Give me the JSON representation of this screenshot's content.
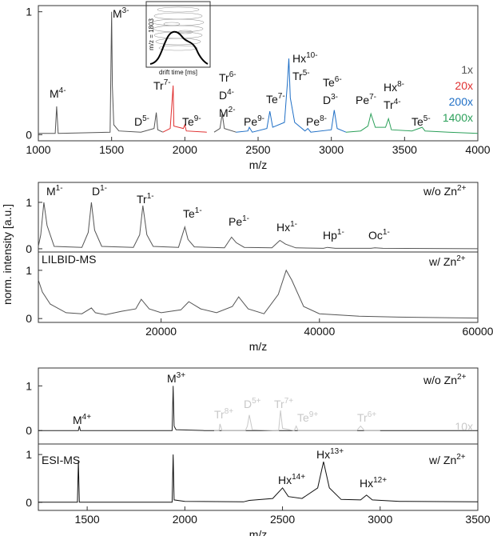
{
  "chart_data": [
    {
      "type": "line",
      "xlim": [
        1000,
        4000
      ],
      "xticks": [
        1000,
        1500,
        2000,
        2500,
        3000,
        3500,
        4000
      ],
      "ylim": [
        -0.05,
        1.05
      ],
      "yticks": [
        0,
        1
      ],
      "xlabel": "m/z",
      "legend": "right",
      "inset": {
        "ylabel": "m/z = 1803",
        "xlabel": "drift time [ms]"
      },
      "series": [
        {
          "name": "1x",
          "color": "#555555",
          "x": [
            1000,
            1115,
            1125,
            1135,
            1490,
            1500,
            1505,
            1515,
            1550,
            1700,
            1790,
            1805,
            1815,
            1850,
            null,
            2200,
            2240,
            2255,
            2270,
            2350
          ],
          "values": [
            0.01,
            0.01,
            0.23,
            0.01,
            0.02,
            1.0,
            0.4,
            0.08,
            0.03,
            0.02,
            0.05,
            0.18,
            0.04,
            0.02,
            null,
            0.02,
            0.05,
            0.17,
            0.05,
            0.02
          ]
        },
        {
          "name": "20x",
          "color": "#e03030",
          "x": [
            1850,
            1900,
            1920,
            1925,
            1990,
            2000,
            2010,
            2150
          ],
          "values": [
            0.02,
            0.05,
            0.4,
            0.07,
            0.05,
            0.08,
            0.03,
            0.02
          ]
        },
        {
          "name": "200x",
          "color": "#1f6fc6",
          "x": [
            2350,
            2430,
            2440,
            2460,
            2560,
            2580,
            2600,
            2680,
            2700,
            2710,
            2720,
            2750,
            2820,
            2840,
            2860,
            3000,
            3020,
            3040,
            3100
          ],
          "values": [
            0.02,
            0.03,
            0.06,
            0.02,
            0.05,
            0.19,
            0.06,
            0.1,
            0.42,
            0.62,
            0.3,
            0.1,
            0.03,
            0.05,
            0.02,
            0.04,
            0.2,
            0.05,
            0.02
          ]
        },
        {
          "name": "1400x",
          "color": "#2ca05a",
          "x": [
            3100,
            3200,
            3250,
            3270,
            3300,
            3370,
            3390,
            3410,
            3550,
            3620,
            3640,
            3800,
            4000
          ],
          "values": [
            0.02,
            0.03,
            0.07,
            0.17,
            0.06,
            0.06,
            0.13,
            0.04,
            0.03,
            0.06,
            0.03,
            0.02,
            0.01
          ]
        }
      ],
      "annotations": [
        {
          "text": "M",
          "sup": "4-"
        },
        {
          "text": "M",
          "sup": "3-"
        },
        {
          "text": "D",
          "sup": "5-"
        },
        {
          "text": "Tr",
          "sup": "7-"
        },
        {
          "text": "Te",
          "sup": "9-"
        },
        {
          "text": "Tr",
          "sup": "6-"
        },
        {
          "text": "D",
          "sup": "4-"
        },
        {
          "text": "M",
          "sup": "2-"
        },
        {
          "text": "Pe",
          "sup": "9-"
        },
        {
          "text": "Te",
          "sup": "7-"
        },
        {
          "text": "Hx",
          "sup": "10-"
        },
        {
          "text": "Tr",
          "sup": "5-"
        },
        {
          "text": "Pe",
          "sup": "8-"
        },
        {
          "text": "Te",
          "sup": "6-"
        },
        {
          "text": "D",
          "sup": "3-"
        },
        {
          "text": "Pe",
          "sup": "7-"
        },
        {
          "text": "Hx",
          "sup": "8-"
        },
        {
          "text": "Tr",
          "sup": "4-"
        },
        {
          "text": "Te",
          "sup": "5-"
        }
      ]
    },
    {
      "type": "line",
      "xlim": [
        4500,
        60000
      ],
      "ylim": [
        -0.07,
        1.43
      ],
      "yticks": [
        0,
        1
      ],
      "ylabel": "norm. intensity [a.u.]",
      "series": [
        {
          "color": "#555555",
          "x": [
            4500,
            4800,
            5200,
            5600,
            6500,
            10000,
            10800,
            11200,
            11600,
            12500,
            16500,
            17300,
            17700,
            18200,
            19000,
            22200,
            23000,
            23400,
            24200,
            28000,
            28900,
            29500,
            30500,
            34000,
            35000,
            35700,
            37000,
            40500,
            41000,
            42000,
            46500,
            47000,
            48000,
            60000
          ],
          "values": [
            0.05,
            0.3,
            1.0,
            0.5,
            0.05,
            0.03,
            0.35,
            1.0,
            0.4,
            0.05,
            0.03,
            0.3,
            0.93,
            0.3,
            0.05,
            0.03,
            0.47,
            0.2,
            0.04,
            0.02,
            0.25,
            0.13,
            0.03,
            0.02,
            0.18,
            0.1,
            0.02,
            0.01,
            0.03,
            0.01,
            0.01,
            0.02,
            0.01,
            0.0
          ]
        }
      ],
      "annotations": [
        {
          "text": "M",
          "sup": "1-"
        },
        {
          "text": "D",
          "sup": "1-"
        },
        {
          "text": "Tr",
          "sup": "1-"
        },
        {
          "text": "Te",
          "sup": "1-"
        },
        {
          "text": "Pe",
          "sup": "1-"
        },
        {
          "text": "Hx",
          "sup": "1-"
        },
        {
          "text": "Hp",
          "sup": "1-"
        },
        {
          "text": "Oc",
          "sup": "1-"
        },
        {
          "text": "w/o Zn",
          "sup": "2+"
        }
      ]
    },
    {
      "type": "line",
      "xlim": [
        4500,
        60000
      ],
      "xticks": [
        20000,
        40000,
        60000
      ],
      "ylim": [
        -0.08,
        1.38
      ],
      "yticks": [
        0,
        1
      ],
      "xlabel": "m/z",
      "series": [
        {
          "color": "#555555",
          "x": [
            4500,
            5000,
            6000,
            8000,
            10000,
            11200,
            11700,
            13000,
            15000,
            16800,
            17500,
            18500,
            20000,
            22500,
            23500,
            25000,
            27000,
            29000,
            29800,
            31000,
            33000,
            34800,
            35800,
            36500,
            38000,
            40000,
            45000,
            50000,
            60000
          ],
          "values": [
            0.8,
            0.55,
            0.3,
            0.12,
            0.1,
            0.22,
            0.12,
            0.08,
            0.15,
            0.2,
            0.4,
            0.2,
            0.12,
            0.18,
            0.35,
            0.2,
            0.12,
            0.25,
            0.45,
            0.2,
            0.1,
            0.5,
            1.0,
            0.8,
            0.25,
            0.1,
            0.05,
            0.03,
            0.01
          ]
        }
      ],
      "annotations": [
        {
          "text": "LILBID-MS"
        },
        {
          "text": "w/ Zn",
          "sup": "2+"
        }
      ]
    },
    {
      "type": "line",
      "xlim": [
        1250,
        3500
      ],
      "ylim": [
        -0.3,
        1.4
      ],
      "yticks": [
        0,
        1
      ],
      "legend": "bottom-right",
      "series": [
        {
          "color": "#222222",
          "x": [
            1250,
            1455,
            1460,
            1465,
            1935,
            1940,
            1945,
            1955,
            2100,
            3500
          ],
          "values": [
            0,
            0,
            0.1,
            0,
            0,
            1.0,
            0.1,
            0.02,
            0,
            0
          ]
        },
        {
          "name": "10x",
          "color": "#c8c8c8",
          "x": [
            2150,
            2175,
            2180,
            2190,
            2310,
            2320,
            2330,
            2345,
            2480,
            2490,
            2500,
            2560,
            2570,
            2580,
            2880,
            2900,
            2920,
            3000
          ],
          "values": [
            0,
            0,
            0.15,
            0,
            0,
            0.1,
            0.35,
            0.02,
            0,
            0.45,
            0.05,
            0,
            0.1,
            0,
            0,
            0.1,
            0,
            0
          ]
        }
      ],
      "annotations": [
        {
          "text": "M",
          "sup": "3+"
        },
        {
          "text": "M",
          "sup": "4+"
        },
        {
          "text": "Tr",
          "sup": "8+",
          "color": "#c8c8c8"
        },
        {
          "text": "D",
          "sup": "5+",
          "color": "#c8c8c8"
        },
        {
          "text": "Tr",
          "sup": "7+",
          "color": "#c8c8c8"
        },
        {
          "text": "Te",
          "sup": "9+",
          "color": "#c8c8c8"
        },
        {
          "text": "Tr",
          "sup": "6+",
          "color": "#c8c8c8"
        },
        {
          "text": "w/o Zn",
          "sup": "2+"
        }
      ]
    },
    {
      "type": "line",
      "xlim": [
        1250,
        3500
      ],
      "xticks": [
        1500,
        2000,
        2500,
        3000,
        3500
      ],
      "ylim": [
        -0.17,
        1.22
      ],
      "yticks": [
        0,
        1
      ],
      "xlabel": "m/z",
      "series": [
        {
          "color": "#111111",
          "x": [
            1250,
            1450,
            1455,
            1460,
            1935,
            1940,
            1945,
            2000,
            2300,
            2330,
            2450,
            2500,
            2530,
            2600,
            2680,
            2710,
            2740,
            2800,
            2900,
            2930,
            2960,
            3100,
            3500
          ],
          "values": [
            0,
            0,
            0.87,
            0,
            0,
            1.0,
            0.05,
            0.02,
            0.01,
            0.04,
            0.08,
            0.3,
            0.12,
            0.08,
            0.3,
            0.85,
            0.3,
            0.06,
            0.05,
            0.15,
            0.05,
            0.02,
            0.01
          ]
        }
      ],
      "annotations": [
        {
          "text": "ESI-MS"
        },
        {
          "text": "w/ Zn",
          "sup": "2+"
        },
        {
          "text": "Hx",
          "sup": "14+"
        },
        {
          "text": "Hx",
          "sup": "13+"
        },
        {
          "text": "Hx",
          "sup": "12+"
        }
      ]
    }
  ]
}
